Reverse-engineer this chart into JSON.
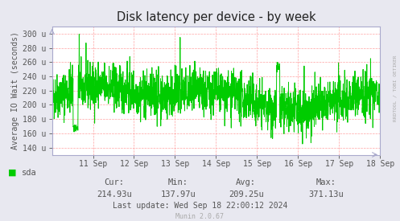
{
  "title": "Disk latency per device - by week",
  "ylabel": "Average IO Wait (seconds)",
  "bg_color": "#e8e8f0",
  "plot_bg_color": "#ffffff",
  "grid_color": "#ff9999",
  "line_color": "#00cc00",
  "tick_label_color": "#555555",
  "legend_label": "sda",
  "legend_color": "#00cc00",
  "cur": "214.93u",
  "min_val": "137.97u",
  "avg": "209.25u",
  "max_val": "371.13u",
  "last_update": "Last update: Wed Sep 18 22:00:12 2024",
  "munin_version": "Munin 2.0.67",
  "rrdtool_label": "RRDTOOL / TOBI OETIKER",
  "yticks": [
    140,
    160,
    180,
    200,
    220,
    240,
    260,
    280,
    300
  ],
  "ytick_labels": [
    "140 u",
    "160 u",
    "180 u",
    "200 u",
    "220 u",
    "240 u",
    "260 u",
    "280 u",
    "300 u"
  ],
  "ylim_min": 130,
  "ylim_max": 310,
  "x_dates": [
    "11 Sep",
    "12 Sep",
    "13 Sep",
    "14 Sep",
    "15 Sep",
    "16 Sep",
    "17 Sep",
    "18 Sep"
  ],
  "num_points": 2016,
  "seed": 42
}
